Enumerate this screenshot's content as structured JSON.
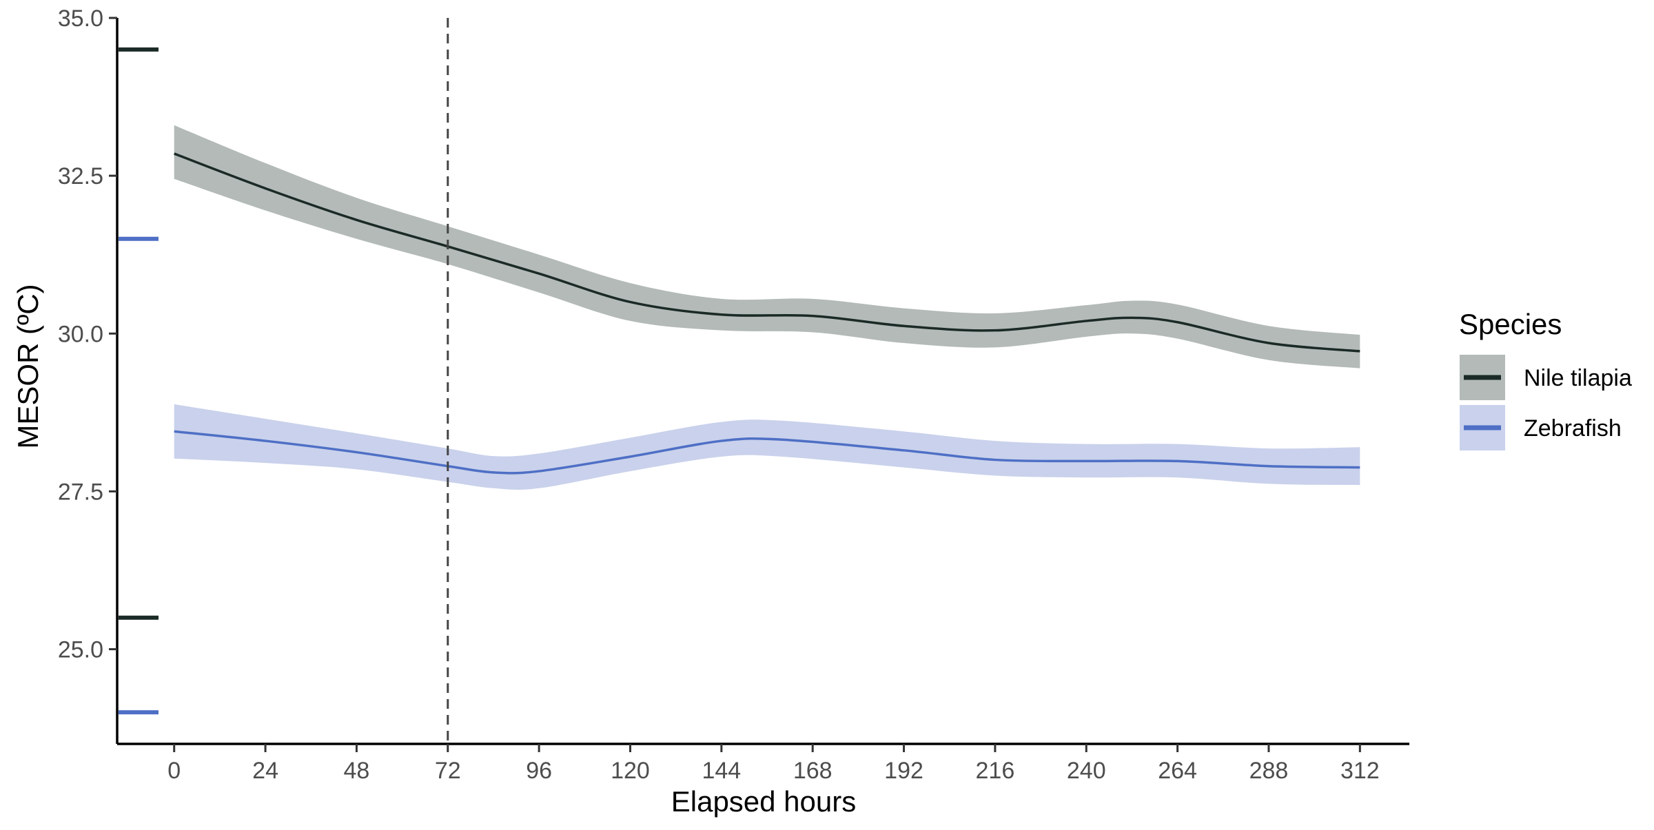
{
  "chart_data": {
    "type": "line",
    "xlabel": "Elapsed hours",
    "ylabel": "MESOR (ºC)",
    "xlim": [
      -15,
      325
    ],
    "ylim": [
      23.5,
      35.0
    ],
    "x_ticks": [
      0,
      24,
      48,
      72,
      96,
      120,
      144,
      168,
      192,
      216,
      240,
      264,
      288,
      312
    ],
    "y_ticks": [
      25.0,
      27.5,
      30.0,
      32.5,
      35.0
    ],
    "y_tick_labels": [
      "25.0",
      "27.5",
      "30.0",
      "32.5",
      "35.0"
    ],
    "vline": {
      "x": 72,
      "style": "dashed",
      "color": "#444444"
    },
    "legend": {
      "title": "Species",
      "position": "right"
    },
    "series": [
      {
        "name": "Nile tilapia",
        "line_color": "#1b2a26",
        "band_color": "#b3bab8",
        "x": [
          0,
          24,
          48,
          72,
          96,
          120,
          144,
          168,
          192,
          216,
          240,
          252,
          264,
          288,
          312
        ],
        "y": [
          32.85,
          32.3,
          31.8,
          31.38,
          30.95,
          30.5,
          30.3,
          30.28,
          30.12,
          30.05,
          30.2,
          30.25,
          30.18,
          29.85,
          29.72
        ],
        "lower": [
          32.45,
          31.95,
          31.5,
          31.1,
          30.65,
          30.2,
          30.05,
          30.02,
          29.85,
          29.78,
          29.95,
          30.0,
          29.92,
          29.58,
          29.45
        ],
        "upper": [
          33.3,
          32.7,
          32.15,
          31.7,
          31.25,
          30.8,
          30.55,
          30.55,
          30.4,
          30.32,
          30.45,
          30.52,
          30.46,
          30.12,
          29.98
        ],
        "rug": [
          34.5,
          25.5
        ]
      },
      {
        "name": "Zebrafish",
        "line_color": "#4e6fc5",
        "band_color": "#c9d1ec",
        "x": [
          0,
          24,
          48,
          72,
          84,
          96,
          120,
          144,
          160,
          192,
          216,
          240,
          264,
          288,
          312
        ],
        "y": [
          28.45,
          28.3,
          28.12,
          27.9,
          27.8,
          27.82,
          28.05,
          28.3,
          28.32,
          28.15,
          28.0,
          27.98,
          27.98,
          27.9,
          27.88
        ],
        "lower": [
          28.02,
          27.95,
          27.85,
          27.65,
          27.55,
          27.55,
          27.82,
          28.05,
          28.05,
          27.88,
          27.75,
          27.72,
          27.72,
          27.62,
          27.6
        ],
        "upper": [
          28.88,
          28.65,
          28.42,
          28.18,
          28.06,
          28.1,
          28.35,
          28.6,
          28.62,
          28.45,
          28.3,
          28.25,
          28.25,
          28.18,
          28.2
        ],
        "rug": [
          31.5,
          24.0
        ]
      }
    ]
  }
}
